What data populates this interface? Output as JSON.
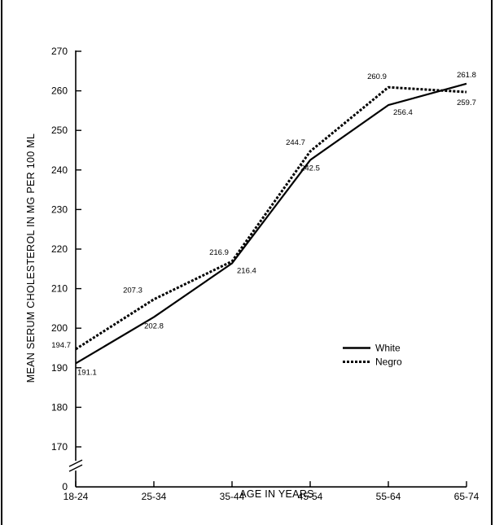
{
  "chart_data": {
    "type": "line",
    "categories": [
      "18-24",
      "25-34",
      "35-44",
      "45-54",
      "55-64",
      "65-74"
    ],
    "series": [
      {
        "name": "White",
        "values": [
          191.1,
          202.8,
          216.4,
          242.5,
          256.4,
          261.8
        ],
        "value_labels": [
          "191.1",
          "202.8",
          "216.4",
          "242.5",
          "256.4",
          "261.8"
        ],
        "style": "solid",
        "color": "#000000"
      },
      {
        "name": "Negro",
        "values": [
          194.7,
          207.3,
          216.9,
          244.7,
          260.9,
          259.7
        ],
        "value_labels": [
          "194.7",
          "207.3",
          "216.9",
          "244.7",
          "260.9",
          "259.7"
        ],
        "style": "dotted",
        "color": "#000000"
      }
    ],
    "y_ticks": [
      170,
      180,
      190,
      200,
      210,
      220,
      230,
      240,
      250,
      260,
      270
    ],
    "y_zero_label": "0",
    "y_axis_break": true,
    "ylim": [
      165,
      270
    ],
    "xlabel": "AGE IN YEARS",
    "ylabel": "MEAN SERUM CHOLESTEROL IN MG PER 100 ML",
    "grid": false,
    "legend_position": "right-middle"
  }
}
